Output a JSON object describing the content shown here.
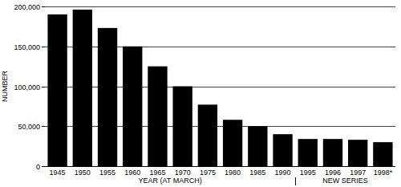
{
  "chart_data": {
    "type": "bar",
    "x_label": "YEAR (AT MARCH)",
    "y_label": "NUMBER",
    "annotations": [
      "NEW SERIES"
    ],
    "categories": [
      "1945",
      "1950",
      "1955",
      "1960",
      "1965",
      "1970",
      "1975",
      "1980",
      "1985",
      "1990",
      "1995",
      "1996",
      "1997",
      "1998*"
    ],
    "values": [
      190000,
      196000,
      173000,
      150000,
      125000,
      100000,
      77000,
      58000,
      50000,
      40000,
      34000,
      34000,
      33000,
      30000
    ],
    "color": "#000000",
    "ylim": [
      0,
      200000
    ],
    "yticks": [
      0,
      {
        "value": 50000,
        "label": "50,000"
      },
      {
        "value": 100000,
        "label": "100,000"
      },
      {
        "value": 150000,
        "label": "150,000"
      },
      {
        "value": 200000,
        "label": "200,000"
      }
    ],
    "grid": true
  }
}
